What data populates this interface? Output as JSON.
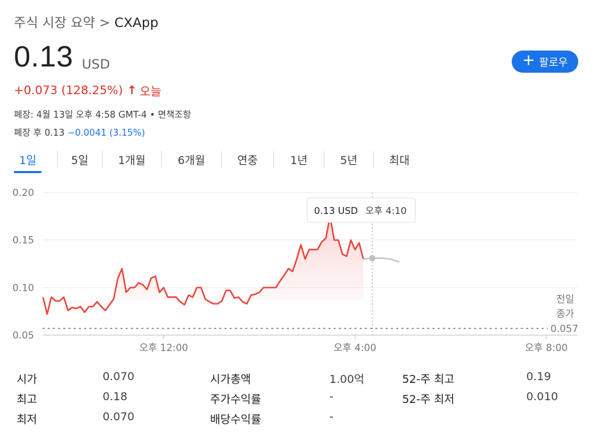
{
  "breadcrumb": {
    "parent": "주식 시장 요약",
    "separator": ">",
    "current": "CXApp"
  },
  "quote": {
    "price": "0.13",
    "currency": "USD",
    "change": "+0.073 (128.25%)",
    "change_period": "오늘",
    "closed_info": "폐장: 4월 13일 오후 4:58 GMT-4 • 면책조항",
    "after_hours_prefix": "폐장 후 0.13",
    "after_hours_change": "−0.0041 (3.15%)"
  },
  "follow_button": {
    "label": "팔로우",
    "icon": "plus-icon"
  },
  "tabs": [
    {
      "label": "1일",
      "active": true
    },
    {
      "label": "5일",
      "active": false
    },
    {
      "label": "1개월",
      "active": false
    },
    {
      "label": "6개월",
      "active": false
    },
    {
      "label": "연중",
      "active": false
    },
    {
      "label": "1년",
      "active": false
    },
    {
      "label": "5년",
      "active": false
    },
    {
      "label": "최대",
      "active": false
    }
  ],
  "chart_data": {
    "type": "line",
    "y_ticks": [
      "0.20",
      "0.15",
      "0.10",
      "0.05"
    ],
    "ylim": [
      0.05,
      0.2
    ],
    "x_ticks": [
      "오후 12:00",
      "오후 4:00",
      "오후 8:00"
    ],
    "tooltip": {
      "price": "0.13 USD",
      "time": "오후 4:10"
    },
    "prev_close_label": [
      "전일",
      "종가"
    ],
    "prev_close_value": "0.057",
    "prev_close": 0.057,
    "colors": {
      "line": "#e8453c",
      "after_hours": "#bdc1c6",
      "prev_close": "#70757a"
    },
    "series": [
      {
        "session": "regular",
        "values": [
          0.09,
          0.072,
          0.09,
          0.086,
          0.086,
          0.09,
          0.076,
          0.079,
          0.078,
          0.08,
          0.074,
          0.08,
          0.08,
          0.085,
          0.08,
          0.076,
          0.082,
          0.088,
          0.11,
          0.12,
          0.095,
          0.1,
          0.1,
          0.105,
          0.103,
          0.098,
          0.11,
          0.112,
          0.095,
          0.1,
          0.09,
          0.09,
          0.09,
          0.085,
          0.082,
          0.092,
          0.09,
          0.1,
          0.1,
          0.088,
          0.085,
          0.083,
          0.083,
          0.086,
          0.097,
          0.097,
          0.089,
          0.09,
          0.085,
          0.083,
          0.092,
          0.093,
          0.095,
          0.1,
          0.1,
          0.1,
          0.1,
          0.107,
          0.113,
          0.12,
          0.117,
          0.13,
          0.145,
          0.13,
          0.14,
          0.14,
          0.14,
          0.148,
          0.152,
          0.175,
          0.15,
          0.15,
          0.135,
          0.133,
          0.15,
          0.14,
          0.147,
          0.13
        ]
      },
      {
        "session": "after_hours",
        "values": [
          0.13,
          0.131,
          0.131,
          0.13,
          0.127
        ]
      }
    ]
  },
  "stats": [
    {
      "label": "시가",
      "value": "0.070"
    },
    {
      "label": "최고",
      "value": "0.18"
    },
    {
      "label": "최저",
      "value": "0.070"
    },
    {
      "label": "시가총액",
      "value": "1.00억"
    },
    {
      "label": "주가수익률",
      "value": "-"
    },
    {
      "label": "배당수익률",
      "value": "-"
    },
    {
      "label": "52-주 최고",
      "value": "0.19"
    },
    {
      "label": "52-주 최저",
      "value": "0.010"
    }
  ]
}
